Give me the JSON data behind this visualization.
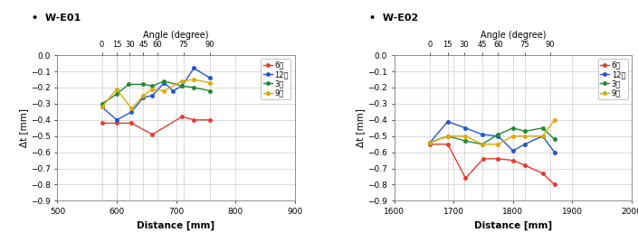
{
  "e01": {
    "title": "W-E01",
    "angle_tick_dist": [
      575,
      600,
      622,
      645,
      668,
      713,
      757
    ],
    "series": {
      "6시": {
        "color": "#e8392e",
        "x": [
          575,
          600,
          625,
          660,
          710,
          730,
          757
        ],
        "y": [
          -0.42,
          -0.42,
          -0.42,
          -0.49,
          -0.38,
          -0.4,
          -0.4
        ]
      },
      "12시": {
        "color": "#2255cc",
        "x": [
          575,
          600,
          625,
          645,
          660,
          680,
          695,
          710,
          730,
          757
        ],
        "y": [
          -0.32,
          -0.4,
          -0.35,
          -0.26,
          -0.25,
          -0.17,
          -0.22,
          -0.19,
          -0.08,
          -0.14
        ]
      },
      "3시": {
        "color": "#228833",
        "x": [
          575,
          600,
          620,
          645,
          660,
          680,
          710,
          730,
          757
        ],
        "y": [
          -0.3,
          -0.24,
          -0.18,
          -0.18,
          -0.19,
          -0.16,
          -0.19,
          -0.2,
          -0.22
        ]
      },
      "9시": {
        "color": "#ddaa00",
        "x": [
          575,
          600,
          625,
          645,
          660,
          680,
          710,
          730,
          757
        ],
        "y": [
          -0.32,
          -0.21,
          -0.33,
          -0.25,
          -0.21,
          -0.22,
          -0.16,
          -0.15,
          -0.17
        ]
      }
    },
    "xlim": [
      500,
      900
    ],
    "ylim": [
      -0.9,
      0.0
    ],
    "yticks": [
      0.0,
      -0.1,
      -0.2,
      -0.3,
      -0.4,
      -0.5,
      -0.6,
      -0.7,
      -0.8,
      -0.9
    ],
    "xticks": [
      500,
      600,
      700,
      800,
      900
    ],
    "xlabel": "Distance [mm]",
    "ylabel": "Δt [mm]",
    "top_label": "Angle (degree)"
  },
  "e02": {
    "title": "W-E02",
    "angle_tick_dist": [
      1660,
      1690,
      1718,
      1748,
      1775,
      1820,
      1863
    ],
    "series": {
      "6시": {
        "color": "#e8392e",
        "x": [
          1660,
          1690,
          1720,
          1750,
          1775,
          1800,
          1820,
          1850,
          1870
        ],
        "y": [
          -0.55,
          -0.55,
          -0.76,
          -0.64,
          -0.64,
          -0.65,
          -0.68,
          -0.73,
          -0.8
        ]
      },
      "12시": {
        "color": "#2255cc",
        "x": [
          1660,
          1690,
          1720,
          1748,
          1775,
          1800,
          1820,
          1850,
          1870
        ],
        "y": [
          -0.54,
          -0.41,
          -0.45,
          -0.49,
          -0.5,
          -0.59,
          -0.55,
          -0.5,
          -0.6
        ]
      },
      "3시": {
        "color": "#228833",
        "x": [
          1660,
          1690,
          1720,
          1748,
          1775,
          1800,
          1820,
          1850,
          1870
        ],
        "y": [
          -0.54,
          -0.5,
          -0.53,
          -0.55,
          -0.49,
          -0.45,
          -0.47,
          -0.45,
          -0.52
        ]
      },
      "9시": {
        "color": "#ddaa00",
        "x": [
          1660,
          1690,
          1720,
          1748,
          1775,
          1800,
          1820,
          1850,
          1870
        ],
        "y": [
          -0.54,
          -0.5,
          -0.5,
          -0.55,
          -0.55,
          -0.5,
          -0.5,
          -0.5,
          -0.4
        ]
      }
    },
    "xlim": [
      1600,
      2000
    ],
    "ylim": [
      -0.9,
      0.0
    ],
    "yticks": [
      0.0,
      -0.1,
      -0.2,
      -0.3,
      -0.4,
      -0.5,
      -0.6,
      -0.7,
      -0.8,
      -0.9
    ],
    "xticks": [
      1600,
      1700,
      1800,
      1900,
      2000
    ],
    "xlabel": "Distance [mm]",
    "ylabel": "Δt [mm]",
    "top_label": "Angle (degree)"
  },
  "angle_ticks": [
    0,
    15,
    30,
    45,
    60,
    75,
    90
  ],
  "background": "#ffffff",
  "grid_color": "#cccccc",
  "title_bullet": "•"
}
